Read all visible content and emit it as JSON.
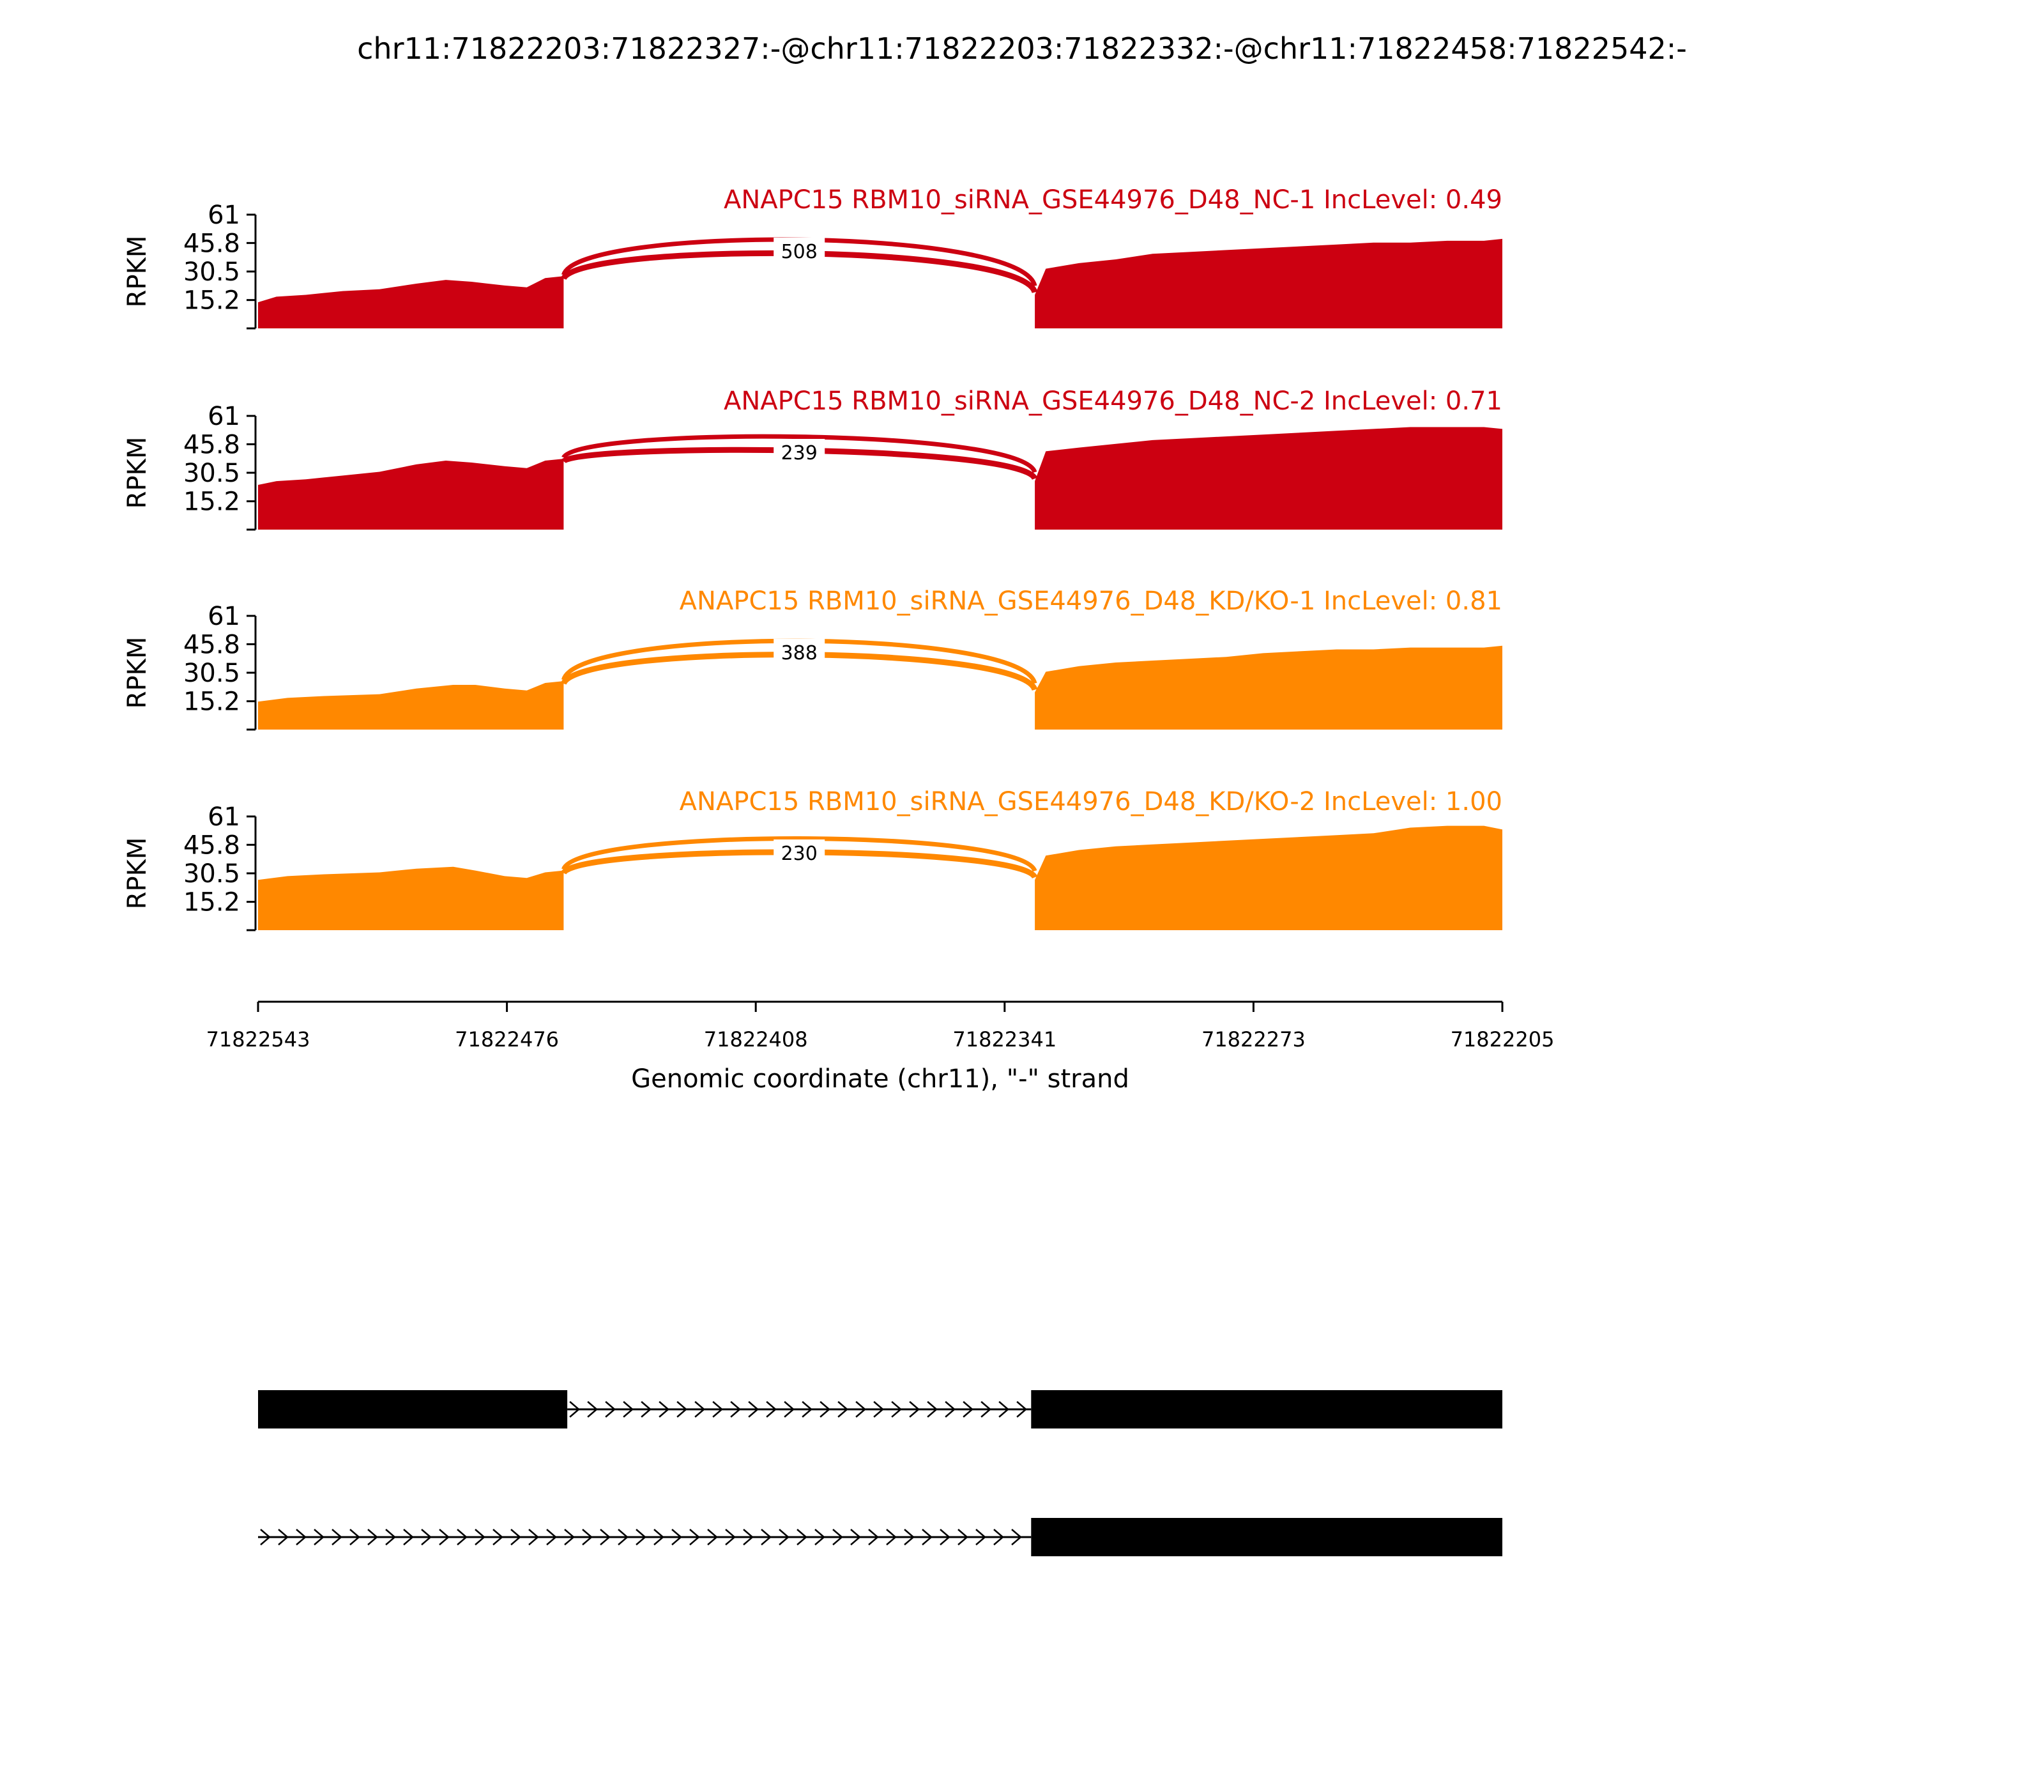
{
  "figure": {
    "title": "chr11:71822203:71822327:-@chr11:71822203:71822332:-@chr11:71822458:71822542:-"
  },
  "colors": {
    "nc": "#cc0011",
    "kd": "#ff8800",
    "text": "#000000",
    "exon": "#000000"
  },
  "chart_data": {
    "type": "area",
    "subtype": "sashimi",
    "ylabel": "RPKM",
    "yticks": [
      "61",
      "45.8",
      "30.5",
      "15.2"
    ],
    "ylim": [
      0,
      61
    ],
    "xlabel": "Genomic coordinate (chr11), \"-\" strand",
    "xticks": [
      "71822543",
      "71822476",
      "71822408",
      "71822341",
      "71822273",
      "71822205"
    ],
    "xlim": [
      71822543,
      71822205
    ],
    "exon1": [
      71822543,
      71822458
    ],
    "exon2": [
      71822332,
      71822205
    ],
    "samples": [
      {
        "name": "ANAPC15 RBM10_siRNA_GSE44976_D48_NC-1 IncLevel: 0.49",
        "color": "nc",
        "junction_label": "508",
        "coverage_exon1": [
          [
            71822543,
            14
          ],
          [
            71822538,
            17
          ],
          [
            71822530,
            18
          ],
          [
            71822520,
            20
          ],
          [
            71822510,
            21
          ],
          [
            71822500,
            24
          ],
          [
            71822492,
            26
          ],
          [
            71822485,
            25
          ],
          [
            71822476,
            23
          ],
          [
            71822470,
            22
          ],
          [
            71822465,
            27
          ],
          [
            71822460,
            28
          ]
        ],
        "coverage_exon2": [
          [
            71822332,
            18
          ],
          [
            71822329,
            32
          ],
          [
            71822320,
            35
          ],
          [
            71822310,
            37
          ],
          [
            71822300,
            40
          ],
          [
            71822290,
            41
          ],
          [
            71822280,
            42
          ],
          [
            71822270,
            43
          ],
          [
            71822260,
            44
          ],
          [
            71822250,
            45
          ],
          [
            71822240,
            46
          ],
          [
            71822230,
            46
          ],
          [
            71822220,
            47
          ],
          [
            71822210,
            47
          ],
          [
            71822205,
            48
          ]
        ]
      },
      {
        "name": "ANAPC15 RBM10_siRNA_GSE44976_D48_NC-2 IncLevel: 0.71",
        "color": "nc",
        "junction_label": "239",
        "coverage_exon1": [
          [
            71822543,
            24
          ],
          [
            71822538,
            26
          ],
          [
            71822530,
            27
          ],
          [
            71822520,
            29
          ],
          [
            71822510,
            31
          ],
          [
            71822500,
            35
          ],
          [
            71822492,
            37
          ],
          [
            71822485,
            36
          ],
          [
            71822476,
            34
          ],
          [
            71822470,
            33
          ],
          [
            71822465,
            37
          ],
          [
            71822460,
            38
          ]
        ],
        "coverage_exon2": [
          [
            71822332,
            26
          ],
          [
            71822329,
            42
          ],
          [
            71822320,
            44
          ],
          [
            71822310,
            46
          ],
          [
            71822300,
            48
          ],
          [
            71822290,
            49
          ],
          [
            71822280,
            50
          ],
          [
            71822270,
            51
          ],
          [
            71822260,
            52
          ],
          [
            71822250,
            53
          ],
          [
            71822240,
            54
          ],
          [
            71822230,
            55
          ],
          [
            71822220,
            55
          ],
          [
            71822210,
            55
          ],
          [
            71822205,
            54
          ]
        ]
      },
      {
        "name": "ANAPC15 RBM10_siRNA_GSE44976_D48_KD/KO-1 IncLevel: 0.81",
        "color": "kd",
        "junction_label": "388",
        "coverage_exon1": [
          [
            71822543,
            15
          ],
          [
            71822535,
            17
          ],
          [
            71822525,
            18
          ],
          [
            71822510,
            19
          ],
          [
            71822500,
            22
          ],
          [
            71822490,
            24
          ],
          [
            71822484,
            24
          ],
          [
            71822476,
            22
          ],
          [
            71822470,
            21
          ],
          [
            71822465,
            25
          ],
          [
            71822460,
            26
          ]
        ],
        "coverage_exon2": [
          [
            71822332,
            20
          ],
          [
            71822329,
            31
          ],
          [
            71822320,
            34
          ],
          [
            71822310,
            36
          ],
          [
            71822300,
            37
          ],
          [
            71822290,
            38
          ],
          [
            71822280,
            39
          ],
          [
            71822270,
            41
          ],
          [
            71822260,
            42
          ],
          [
            71822250,
            43
          ],
          [
            71822240,
            43
          ],
          [
            71822230,
            44
          ],
          [
            71822220,
            44
          ],
          [
            71822210,
            44
          ],
          [
            71822205,
            45
          ]
        ]
      },
      {
        "name": "ANAPC15 RBM10_siRNA_GSE44976_D48_KD/KO-2 IncLevel: 1.00",
        "color": "kd",
        "junction_label": "230",
        "coverage_exon1": [
          [
            71822543,
            27
          ],
          [
            71822535,
            29
          ],
          [
            71822525,
            30
          ],
          [
            71822510,
            31
          ],
          [
            71822500,
            33
          ],
          [
            71822490,
            34
          ],
          [
            71822484,
            32
          ],
          [
            71822476,
            29
          ],
          [
            71822470,
            28
          ],
          [
            71822465,
            31
          ],
          [
            71822460,
            32
          ]
        ],
        "coverage_exon2": [
          [
            71822332,
            27
          ],
          [
            71822329,
            40
          ],
          [
            71822320,
            43
          ],
          [
            71822310,
            45
          ],
          [
            71822300,
            46
          ],
          [
            71822290,
            47
          ],
          [
            71822280,
            48
          ],
          [
            71822270,
            49
          ],
          [
            71822260,
            50
          ],
          [
            71822250,
            51
          ],
          [
            71822240,
            52
          ],
          [
            71822230,
            55
          ],
          [
            71822220,
            56
          ],
          [
            71822210,
            56
          ],
          [
            71822205,
            54
          ]
        ]
      }
    ],
    "transcripts": [
      {
        "exons": [
          [
            71822543,
            71822459
          ],
          [
            71822333,
            71822205
          ]
        ]
      },
      {
        "exons": [
          [
            71822333,
            71822205
          ]
        ],
        "intron_start": 71822543
      }
    ]
  }
}
